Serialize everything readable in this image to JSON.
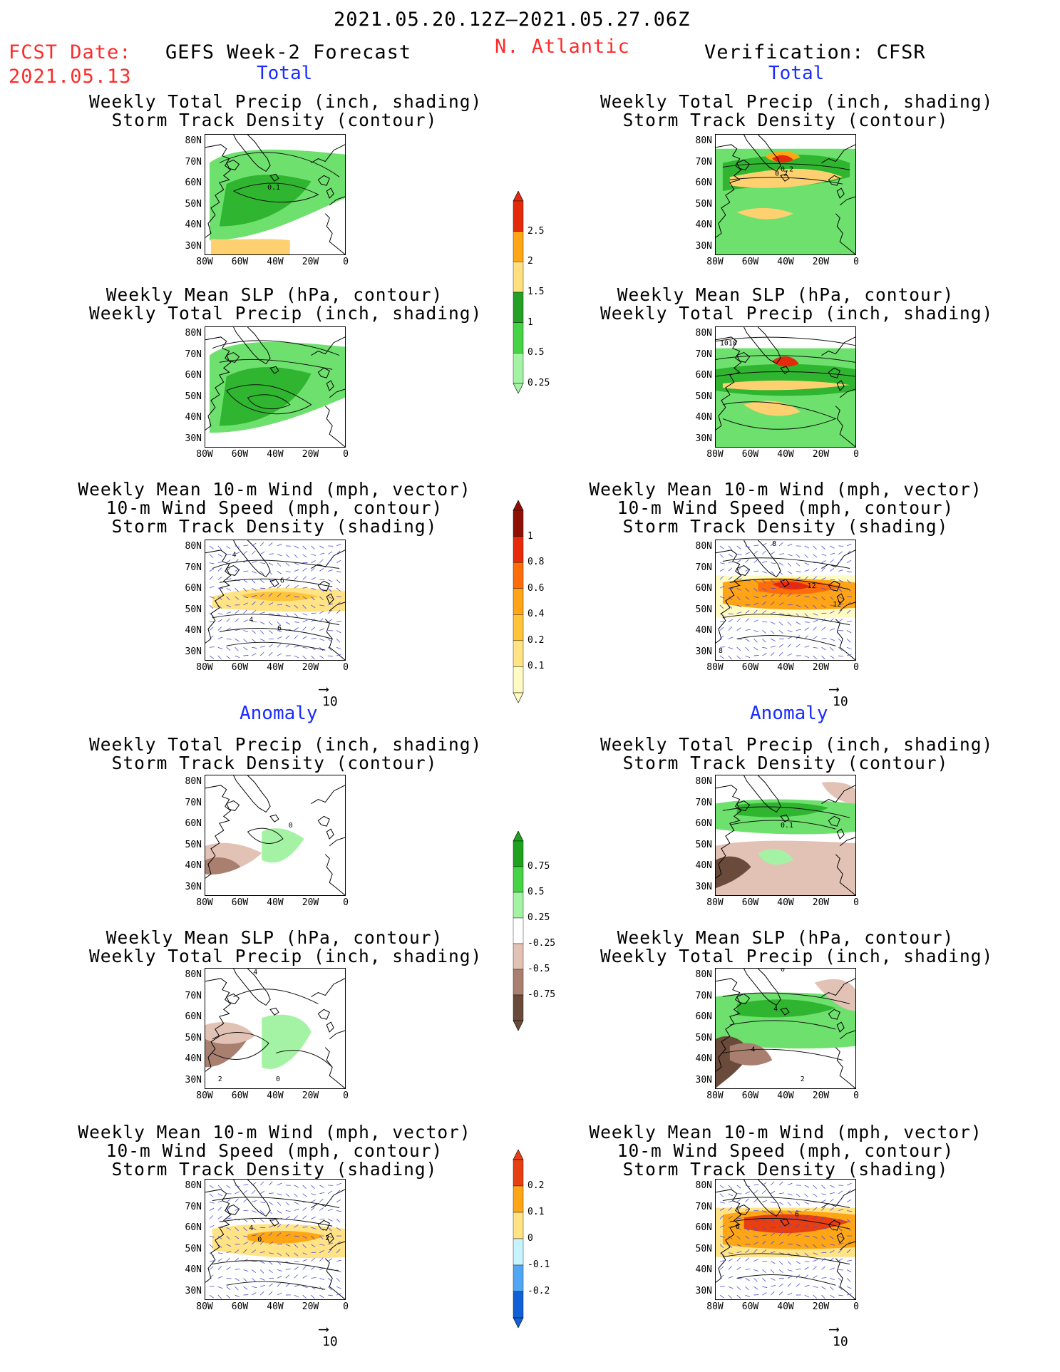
{
  "header": {
    "period": "2021.05.20.12Z–2021.05.27.06Z",
    "fcst_label": "FCST Date:",
    "fcst_date": "2021.05.13",
    "left_title": "GEFS Week-2 Forecast",
    "region": "N. Atlantic",
    "right_title": "Verification: CFSR"
  },
  "sections": {
    "total": "Total",
    "anomaly": "Anomaly"
  },
  "panel_titles": {
    "precip_track": [
      "Weekly Total Precip (inch, shading)",
      "Storm Track Density (contour)"
    ],
    "slp_precip": [
      "Weekly Mean SLP (hPa, contour)",
      "Weekly Total Precip (inch, shading)"
    ],
    "wind_track": [
      "Weekly Mean 10-m Wind (mph, vector)",
      "10-m Wind Speed (mph, contour)",
      "Storm Track Density (shading)"
    ]
  },
  "axes": {
    "lat_ticks": [
      "80N",
      "70N",
      "60N",
      "50N",
      "40N",
      "30N"
    ],
    "lon_ticks": [
      "80W",
      "60W",
      "40W",
      "20W",
      "0"
    ]
  },
  "vector_ref": "10",
  "colorbars": {
    "precip_total": {
      "labels": [
        "2.5",
        "2",
        "1.5",
        "1",
        "0.5",
        "0.25"
      ],
      "colors": [
        "#e32b0c",
        "#ffa616",
        "#ffe080",
        "#24a124",
        "#46d346",
        "#a4f3a4"
      ]
    },
    "track_total": {
      "labels": [
        "1",
        "0.8",
        "0.6",
        "0.4",
        "0.2",
        "0.1"
      ],
      "colors": [
        "#8f1005",
        "#e72a0a",
        "#ff6d0a",
        "#ffa416",
        "#ffc43a",
        "#ffe385",
        "#fffbc3"
      ]
    },
    "precip_anom": {
      "labels": [
        "0.75",
        "0.5",
        "0.25",
        "-0.25",
        "-0.5",
        "-0.75"
      ],
      "colors": [
        "#1ea21e",
        "#46d346",
        "#a4f3a4",
        "#ffffff",
        "#e3c2b6",
        "#a97f70",
        "#6a4a3b"
      ]
    },
    "track_anom": {
      "labels": [
        "0.2",
        "0.1",
        "0",
        "-0.1",
        "-0.2"
      ],
      "colors": [
        "#e73f12",
        "#ffa616",
        "#ffe385",
        "#c6f3ff",
        "#52a7f4",
        "#1160d5"
      ]
    }
  },
  "contour_labels": {
    "L1": "0.1",
    "R1a": "0.2",
    "R1b": "0.2",
    "R2": "1010",
    "L3a": "4",
    "L3b": "6",
    "L3c": "6",
    "L3d": "4",
    "R3a": "8",
    "R3b": "12",
    "R3c": "12",
    "R3d": "8",
    "L4": "0",
    "R4": "0.1",
    "L5a": "4",
    "L5b": "2",
    "L5c": "0",
    "R5a": "0",
    "R5b": "4",
    "R5c": "4",
    "R5d": "2",
    "L6a": "4",
    "L6b": "0",
    "L6c": "2",
    "R6a": "6",
    "R6b": "6"
  }
}
